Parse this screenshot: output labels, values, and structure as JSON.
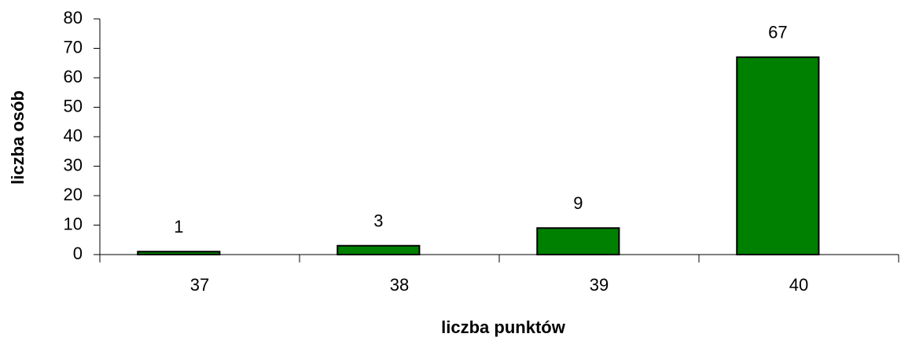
{
  "chart_data": {
    "type": "bar",
    "x_label": "liczba punktów",
    "y_label": "liczba osób",
    "categories": [
      "37",
      "38",
      "39",
      "40"
    ],
    "values": [
      1,
      3,
      9,
      67
    ],
    "color": "#008000",
    "ylim": [
      0,
      80
    ],
    "yticks": [
      0,
      10,
      20,
      30,
      40,
      50,
      60,
      70,
      80
    ],
    "data_labels": true
  }
}
